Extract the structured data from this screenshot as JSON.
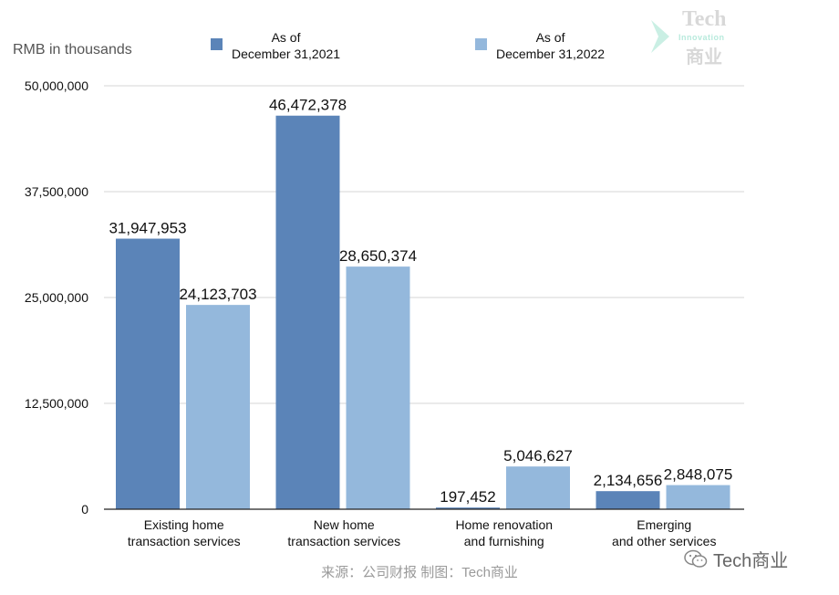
{
  "chart_data": {
    "type": "bar",
    "unit_label": "RMB in thousands",
    "categories": [
      [
        "Existing home",
        "transaction services"
      ],
      [
        "New home",
        "transaction services"
      ],
      [
        "Home renovation",
        "and furnishing"
      ],
      [
        "Emerging",
        "and other services"
      ]
    ],
    "series": [
      {
        "name": [
          "As of",
          "December 31,2021"
        ],
        "color": "#5b84b8",
        "values": [
          31947953,
          46472378,
          197452,
          2134656
        ],
        "labels": [
          "31,947,953",
          "46,472,378",
          "197,452",
          "2,134,656"
        ]
      },
      {
        "name": [
          "As of",
          "December 31,2022"
        ],
        "color": "#94b8dc",
        "values": [
          24123703,
          28650374,
          5046627,
          2848075
        ],
        "labels": [
          "24,123,703",
          "28,650,374",
          "5,046,627",
          "2,848,075"
        ]
      }
    ],
    "ylim": [
      0,
      50000000
    ],
    "yticks": [
      0,
      12500000,
      25000000,
      37500000,
      50000000
    ],
    "ytick_labels": [
      "0",
      "12,500,000",
      "25,000,000",
      "37,500,000",
      "50,000,000"
    ],
    "grid": true,
    "legend_position": "top"
  },
  "source_note": "来源：公司财报 制图：Tech商业",
  "watermark": {
    "brand_en": "Tech",
    "brand_sub": "Innovation",
    "brand_cn": "商业",
    "wechat_text": "Tech商业"
  }
}
